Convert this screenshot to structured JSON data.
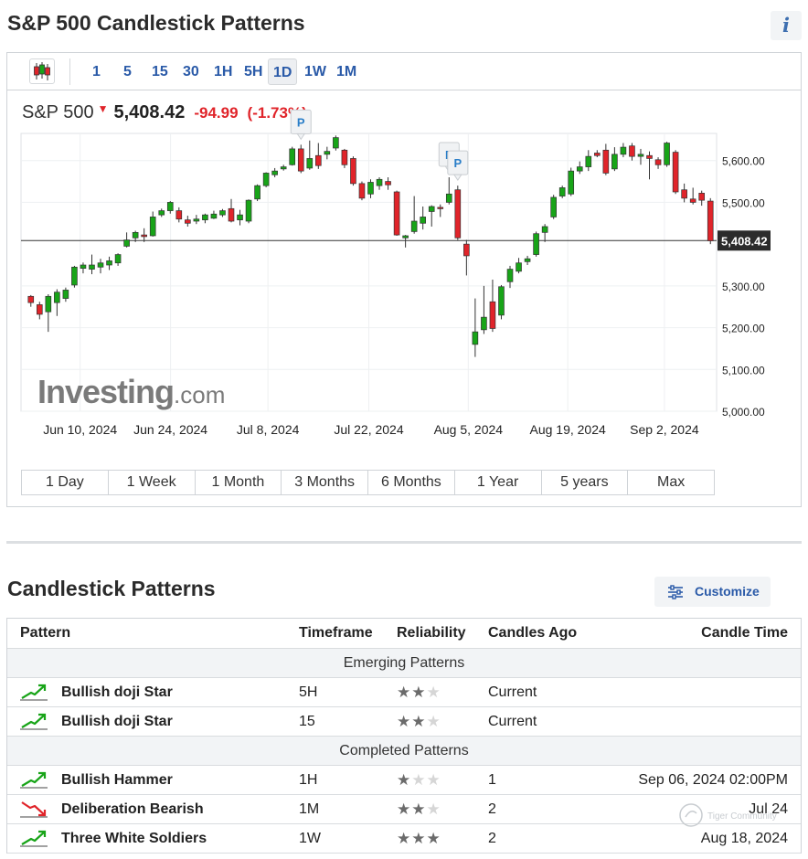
{
  "page": {
    "title": "S&P 500 Candlestick Patterns",
    "info_icon": "info-icon",
    "info_label": "i"
  },
  "toolbar": {
    "chart_type_icon": "candlestick-icon",
    "intervals": [
      "1",
      "5",
      "15",
      "30",
      "1H",
      "5H",
      "1D",
      "1W",
      "1M"
    ],
    "active_interval": "1D"
  },
  "quote": {
    "name": "S&P 500",
    "last": "5,408.42",
    "change": "-94.99",
    "change_pct": "(-1.73%)",
    "direction_icon": "down-arrow-icon"
  },
  "chart_data": {
    "type": "candlestick",
    "x_tick_labels": [
      "Jun 10, 2024",
      "Jun 24, 2024",
      "Jul 8, 2024",
      "Jul 22, 2024",
      "Aug 5, 2024",
      "Aug 19, 2024",
      "Sep 2, 2024"
    ],
    "y_tick_labels": [
      "5,600.00",
      "5,500.00",
      "5,300.00",
      "5,200.00",
      "5,100.00",
      "5,000.00"
    ],
    "y_ticks": [
      5600,
      5500,
      5300,
      5200,
      5100,
      5000
    ],
    "ylim": [
      5000,
      5665
    ],
    "current_value": 5408.42,
    "current_label": "5,408.42",
    "up_color": "#18a418",
    "down_color": "#e0242a",
    "candles": [
      [
        5275,
        5260,
        5278,
        5250
      ],
      [
        5255,
        5232,
        5262,
        5220
      ],
      [
        5238,
        5275,
        5280,
        5190
      ],
      [
        5260,
        5285,
        5292,
        5228
      ],
      [
        5270,
        5290,
        5296,
        5262
      ],
      [
        5302,
        5345,
        5348,
        5296
      ],
      [
        5342,
        5350,
        5356,
        5330
      ],
      [
        5340,
        5350,
        5375,
        5328
      ],
      [
        5345,
        5355,
        5365,
        5330
      ],
      [
        5350,
        5360,
        5370,
        5338
      ],
      [
        5355,
        5375,
        5378,
        5348
      ],
      [
        5395,
        5410,
        5428,
        5392
      ],
      [
        5415,
        5428,
        5432,
        5405
      ],
      [
        5422,
        5418,
        5438,
        5405
      ],
      [
        5420,
        5465,
        5478,
        5418
      ],
      [
        5470,
        5480,
        5485,
        5465
      ],
      [
        5480,
        5500,
        5503,
        5473
      ],
      [
        5480,
        5460,
        5488,
        5452
      ],
      [
        5458,
        5450,
        5468,
        5442
      ],
      [
        5455,
        5460,
        5470,
        5448
      ],
      [
        5458,
        5470,
        5473,
        5450
      ],
      [
        5462,
        5472,
        5480,
        5460
      ],
      [
        5470,
        5480,
        5484,
        5465
      ],
      [
        5485,
        5455,
        5508,
        5452
      ],
      [
        5458,
        5470,
        5482,
        5445
      ],
      [
        5455,
        5505,
        5507,
        5450
      ],
      [
        5508,
        5540,
        5543,
        5503
      ],
      [
        5540,
        5570,
        5572,
        5536
      ],
      [
        5566,
        5575,
        5582,
        5560
      ],
      [
        5580,
        5585,
        5590,
        5576
      ],
      [
        5590,
        5628,
        5633,
        5588
      ],
      [
        5628,
        5575,
        5638,
        5570
      ],
      [
        5582,
        5605,
        5648,
        5578
      ],
      [
        5612,
        5588,
        5642,
        5580
      ],
      [
        5615,
        5622,
        5633,
        5603
      ],
      [
        5630,
        5655,
        5660,
        5624
      ],
      [
        5625,
        5590,
        5628,
        5582
      ],
      [
        5605,
        5545,
        5610,
        5540
      ],
      [
        5545,
        5510,
        5550,
        5505
      ],
      [
        5520,
        5548,
        5555,
        5510
      ],
      [
        5540,
        5555,
        5560,
        5530
      ],
      [
        5550,
        5542,
        5560,
        5530
      ],
      [
        5525,
        5422,
        5528,
        5420
      ],
      [
        5415,
        5420,
        5422,
        5392
      ],
      [
        5430,
        5455,
        5515,
        5425
      ],
      [
        5450,
        5465,
        5490,
        5435
      ],
      [
        5478,
        5490,
        5493,
        5442
      ],
      [
        5488,
        5485,
        5495,
        5465
      ],
      [
        5500,
        5520,
        5560,
        5495
      ],
      [
        5530,
        5415,
        5540,
        5410
      ],
      [
        5400,
        5372,
        5410,
        5325
      ],
      [
        5160,
        5190,
        5270,
        5130
      ],
      [
        5195,
        5225,
        5300,
        5185
      ],
      [
        5262,
        5198,
        5315,
        5190
      ],
      [
        5230,
        5298,
        5302,
        5220
      ],
      [
        5310,
        5340,
        5348,
        5295
      ],
      [
        5335,
        5355,
        5367,
        5330
      ],
      [
        5358,
        5365,
        5372,
        5350
      ],
      [
        5375,
        5425,
        5430,
        5370
      ],
      [
        5428,
        5442,
        5448,
        5405
      ],
      [
        5465,
        5512,
        5518,
        5460
      ],
      [
        5515,
        5535,
        5540,
        5510
      ],
      [
        5520,
        5575,
        5583,
        5515
      ],
      [
        5575,
        5585,
        5598,
        5568
      ],
      [
        5585,
        5610,
        5625,
        5575
      ],
      [
        5618,
        5612,
        5625,
        5608
      ],
      [
        5625,
        5570,
        5640,
        5565
      ],
      [
        5580,
        5615,
        5632,
        5575
      ],
      [
        5615,
        5632,
        5642,
        5608
      ],
      [
        5635,
        5610,
        5642,
        5600
      ],
      [
        5610,
        5615,
        5628,
        5590
      ],
      [
        5612,
        5605,
        5622,
        5555
      ],
      [
        5602,
        5590,
        5608,
        5580
      ],
      [
        5590,
        5642,
        5645,
        5585
      ],
      [
        5620,
        5525,
        5625,
        5520
      ],
      [
        5530,
        5510,
        5545,
        5500
      ],
      [
        5508,
        5500,
        5535,
        5495
      ],
      [
        5522,
        5505,
        5528,
        5492
      ],
      [
        5503,
        5408,
        5510,
        5400
      ]
    ],
    "pattern_markers": [
      {
        "label": "P",
        "candle_index": 31
      },
      {
        "label": "P",
        "candle_index": 48
      },
      {
        "label": "P",
        "candle_index": 49
      }
    ]
  },
  "ranges": [
    "1 Day",
    "1 Week",
    "1 Month",
    "3 Months",
    "6 Months",
    "1 Year",
    "5 years",
    "Max"
  ],
  "patterns": {
    "title": "Candlestick Patterns",
    "customize_label": "Customize",
    "customize_icon": "sliders-icon",
    "columns": [
      "Pattern",
      "Timeframe",
      "Reliability",
      "Candles Ago",
      "Candle Time"
    ],
    "emerging_label": "Emerging Patterns",
    "completed_label": "Completed Patterns",
    "emerging": [
      {
        "name": "Bullish doji Star",
        "timeframe": "5H",
        "reliability": 2,
        "candles_ago": "Current",
        "candle_time": "",
        "icon": "bullish-trend-icon"
      },
      {
        "name": "Bullish doji Star",
        "timeframe": "15",
        "reliability": 2,
        "candles_ago": "Current",
        "candle_time": "",
        "icon": "bullish-trend-icon"
      }
    ],
    "completed": [
      {
        "name": "Bullish Hammer",
        "timeframe": "1H",
        "reliability": 1,
        "candles_ago": "1",
        "candle_time": "Sep 06, 2024 02:00PM",
        "icon": "bullish-trend-icon"
      },
      {
        "name": "Deliberation Bearish",
        "timeframe": "1M",
        "reliability": 2,
        "candles_ago": "2",
        "candle_time": "Jul 24",
        "icon": "bearish-trend-icon"
      },
      {
        "name": "Three White Soldiers",
        "timeframe": "1W",
        "reliability": 3,
        "candles_ago": "2",
        "candle_time": "Aug 18, 2024",
        "icon": "neutral-trend-icon"
      }
    ]
  },
  "branding": {
    "logo_text": "Investing",
    "logo_suffix": ".com",
    "watermark_text": "Tiger Community"
  }
}
